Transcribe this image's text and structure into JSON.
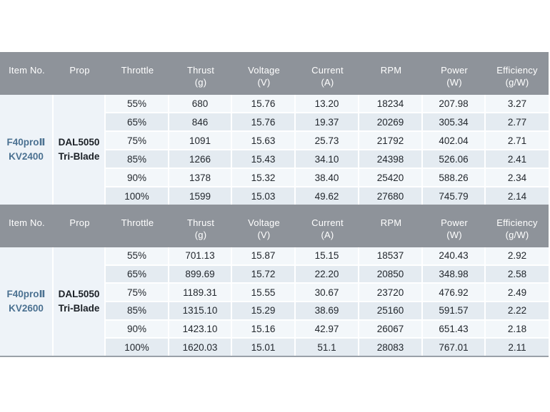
{
  "colors": {
    "header_bg": "#8e939a",
    "header_text": "#ffffff",
    "row_odd_bg": "#f3f7fa",
    "row_even_bg": "#e4ebf1",
    "item_prop_bg": "#eef3f8",
    "item_text": "#4b7191",
    "prop_text": "#1b2026",
    "cell_text": "#22272d",
    "bottom_border": "#9aa1a8",
    "page_bg": "#ffffff"
  },
  "chart_data": [
    {
      "type": "table",
      "item_no": [
        "F40proⅡ",
        "KV2400"
      ],
      "prop": [
        "DAL5050",
        "Tri-Blade"
      ],
      "columns": [
        {
          "label": "Item No.",
          "unit": ""
        },
        {
          "label": "Prop",
          "unit": ""
        },
        {
          "label": "Throttle",
          "unit": ""
        },
        {
          "label": "Thrust",
          "unit": "(g)"
        },
        {
          "label": "Voltage",
          "unit": "(V)"
        },
        {
          "label": "Current",
          "unit": "(A)"
        },
        {
          "label": "RPM",
          "unit": ""
        },
        {
          "label": "Power",
          "unit": "(W)"
        },
        {
          "label": "Efficiency",
          "unit": "(g/W)"
        }
      ],
      "rows": [
        [
          "55%",
          "680",
          "15.76",
          "13.20",
          "18234",
          "207.98",
          "3.27"
        ],
        [
          "65%",
          "846",
          "15.76",
          "19.37",
          "20269",
          "305.34",
          "2.77"
        ],
        [
          "75%",
          "1091",
          "15.63",
          "25.73",
          "21792",
          "402.04",
          "2.71"
        ],
        [
          "85%",
          "1266",
          "15.43",
          "34.10",
          "24398",
          "526.06",
          "2.41"
        ],
        [
          "90%",
          "1378",
          "15.32",
          "38.40",
          "25420",
          "588.26",
          "2.34"
        ],
        [
          "100%",
          "1599",
          "15.03",
          "49.62",
          "27680",
          "745.79",
          "2.14"
        ]
      ]
    },
    {
      "type": "table",
      "item_no": [
        "F40proⅡ",
        "KV2600"
      ],
      "prop": [
        "DAL5050",
        "Tri-Blade"
      ],
      "columns": [
        {
          "label": "Item No.",
          "unit": ""
        },
        {
          "label": "Prop",
          "unit": ""
        },
        {
          "label": "Throttle",
          "unit": ""
        },
        {
          "label": "Thrust",
          "unit": "(g)"
        },
        {
          "label": "Voltage",
          "unit": "(V)"
        },
        {
          "label": "Current",
          "unit": "(A)"
        },
        {
          "label": "RPM",
          "unit": ""
        },
        {
          "label": "Power",
          "unit": "(W)"
        },
        {
          "label": "Efficiency",
          "unit": "(g/W)"
        }
      ],
      "rows": [
        [
          "55%",
          "701.13",
          "15.87",
          "15.15",
          "18537",
          "240.43",
          "2.92"
        ],
        [
          "65%",
          "899.69",
          "15.72",
          "22.20",
          "20850",
          "348.98",
          "2.58"
        ],
        [
          "75%",
          "1189.31",
          "15.55",
          "30.67",
          "23720",
          "476.92",
          "2.49"
        ],
        [
          "85%",
          "1315.10",
          "15.29",
          "38.69",
          "25160",
          "591.57",
          "2.22"
        ],
        [
          "90%",
          "1423.10",
          "15.16",
          "42.97",
          "26067",
          "651.43",
          "2.18"
        ],
        [
          "100%",
          "1620.03",
          "15.01",
          "51.1",
          "28083",
          "767.01",
          "2.11"
        ]
      ]
    }
  ]
}
